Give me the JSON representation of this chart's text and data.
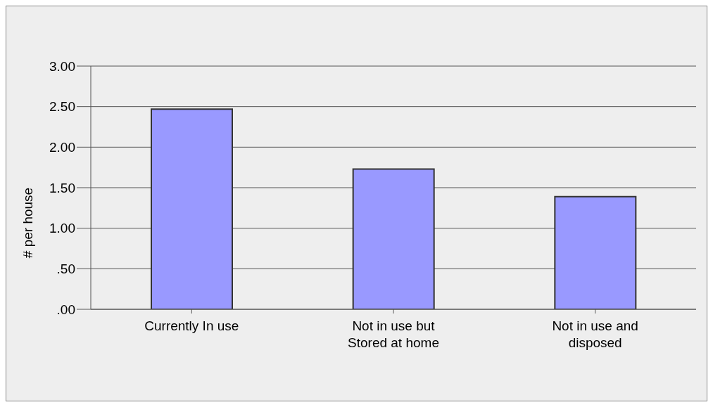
{
  "chart_data": {
    "type": "bar",
    "ylabel": "# per house",
    "categories": [
      "Currently In use",
      "Not in use but Stored at home",
      "Not in use and disposed"
    ],
    "values": [
      2.47,
      1.73,
      1.39
    ],
    "color": "#9999ff",
    "ylim": [
      0,
      3
    ],
    "yticks": [
      {
        "value": 0,
        "label": ".00"
      },
      {
        "value": 0.5,
        "label": ".50"
      },
      {
        "value": 1,
        "label": "1.00"
      },
      {
        "value": 1.5,
        "label": "1.50"
      },
      {
        "value": 2,
        "label": "2.00"
      },
      {
        "value": 2.5,
        "label": "2.50"
      },
      {
        "value": 3,
        "label": "3.00"
      }
    ],
    "grid": "y",
    "legend": false
  }
}
